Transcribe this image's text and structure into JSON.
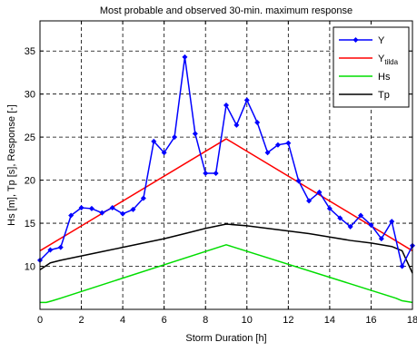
{
  "chart_data": {
    "type": "line",
    "title": "Most probable and observed 30-min. maximum response",
    "xlabel": "Storm Duration [h]",
    "ylabel": "Hs [m], Tp [s], Response [-]",
    "xlim": [
      0,
      18
    ],
    "ylim": [
      5,
      38.5
    ],
    "xticks": [
      0,
      2,
      4,
      6,
      8,
      10,
      12,
      14,
      16,
      18
    ],
    "yticks": [
      10,
      15,
      20,
      25,
      30,
      35
    ],
    "grid": true,
    "legend_position": "top-right",
    "series": [
      {
        "name": "Y",
        "color": "#0000ff",
        "marker": "diamond",
        "x": [
          0,
          0.5,
          1,
          1.5,
          2,
          2.5,
          3,
          3.5,
          4,
          4.5,
          5,
          5.5,
          6,
          6.5,
          7,
          7.5,
          8,
          8.5,
          9,
          9.5,
          10,
          10.5,
          11,
          11.5,
          12,
          12.5,
          13,
          13.5,
          14,
          14.5,
          15,
          15.5,
          16,
          16.5,
          17,
          17.5,
          18
        ],
        "y": [
          10.7,
          11.9,
          12.2,
          15.9,
          16.8,
          16.7,
          16.2,
          16.8,
          16.1,
          16.6,
          17.9,
          24.5,
          23.2,
          25.0,
          34.3,
          25.4,
          20.8,
          20.8,
          28.7,
          26.4,
          29.3,
          26.7,
          23.2,
          24.1,
          24.3,
          19.9,
          17.6,
          18.6,
          16.7,
          15.6,
          14.6,
          15.9,
          14.8,
          13.2,
          15.2,
          10.0,
          12.4
        ]
      },
      {
        "name": "Y",
        "subscript": "tilda",
        "color": "#ff0000",
        "marker": "none",
        "x": [
          0,
          9,
          18
        ],
        "y": [
          11.8,
          24.8,
          11.8
        ]
      },
      {
        "name": "Hs",
        "color": "#00dd00",
        "marker": "none",
        "x": [
          0,
          0.3,
          0.6,
          1,
          9,
          17.2,
          17.5,
          18
        ],
        "y": [
          5.8,
          5.8,
          6.0,
          6.3,
          12.5,
          6.3,
          6.0,
          5.8
        ]
      },
      {
        "name": "Tp",
        "color": "#000000",
        "marker": "none",
        "x": [
          0,
          0.5,
          1,
          2,
          3,
          4,
          5,
          6,
          7,
          8,
          9,
          10,
          11,
          12,
          13,
          14,
          15,
          16,
          17,
          17.5,
          18
        ],
        "y": [
          9.6,
          10.4,
          10.7,
          11.2,
          11.7,
          12.2,
          12.7,
          13.2,
          13.8,
          14.4,
          14.9,
          14.7,
          14.4,
          14.1,
          13.8,
          13.4,
          13.0,
          12.7,
          12.3,
          11.8,
          9.2
        ]
      }
    ]
  }
}
